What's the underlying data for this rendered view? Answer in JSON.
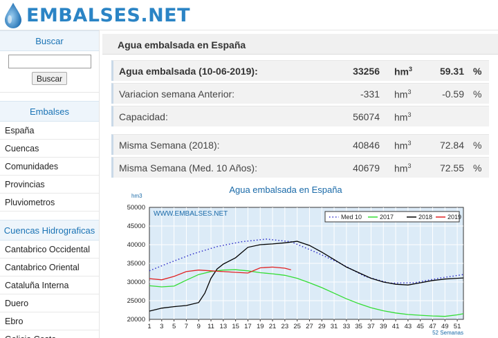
{
  "header": {
    "logo_text": "EMBALSES.NET",
    "logo_icon": "water-drop-icon"
  },
  "sidebar": {
    "search_heading": "Buscar",
    "search_value": "",
    "search_button": "Buscar",
    "embalses_heading": "Embalses",
    "embalses_items": [
      "España",
      "Cuencas",
      "Comunidades",
      "Provincias",
      "Pluviometros"
    ],
    "cuencas_heading": "Cuencas Hidrograficas",
    "cuencas_items": [
      "Cantabrico Occidental",
      "Cantabrico Oriental",
      "Cataluña Interna",
      "Duero",
      "Ebro",
      "Galicia Costa"
    ]
  },
  "main": {
    "title": "Agua embalsada en España",
    "stats": [
      {
        "label": "Agua embalsada (10-06-2019):",
        "value": "33256",
        "unit": "hm",
        "unit_sup": "3",
        "pct": "59.31",
        "pct_unit": "%"
      },
      {
        "label": "Variacion semana Anterior:",
        "value": "-331",
        "unit": "hm",
        "unit_sup": "3",
        "pct": "-0.59",
        "pct_unit": "%"
      },
      {
        "label": "Capacidad:",
        "value": "56074",
        "unit": "hm",
        "unit_sup": "3",
        "pct": "",
        "pct_unit": ""
      },
      {
        "label": "Misma Semana (2018):",
        "value": "40846",
        "unit": "hm",
        "unit_sup": "3",
        "pct": "72.84",
        "pct_unit": "%"
      },
      {
        "label": "Misma Semana (Med. 10 Años):",
        "value": "40679",
        "unit": "hm",
        "unit_sup": "3",
        "pct": "72.55",
        "pct_unit": "%"
      }
    ]
  },
  "chart_data": {
    "type": "line",
    "title": "Agua embalsada en España",
    "ylabel": "hm3",
    "xlabel": "52 Semanas",
    "watermark": "WWW.EMBALSES.NET",
    "ylim": [
      20000,
      50000
    ],
    "xlim": [
      1,
      52
    ],
    "x_ticks": [
      1,
      3,
      5,
      7,
      9,
      11,
      13,
      15,
      17,
      19,
      21,
      23,
      25,
      27,
      29,
      31,
      33,
      35,
      37,
      39,
      41,
      43,
      45,
      47,
      49,
      51
    ],
    "y_ticks": [
      "20000",
      "25000",
      "30000",
      "35000",
      "40000",
      "45000",
      "50000"
    ],
    "grid": true,
    "legend_position": "top-right",
    "series": [
      {
        "name": "Med 10",
        "color": "#2c2cc8",
        "dash": "dotted",
        "x": [
          1,
          4,
          8,
          12,
          16,
          20,
          24,
          28,
          32,
          36,
          40,
          44,
          48,
          52
        ],
        "values": [
          33000,
          35000,
          37500,
          39500,
          40800,
          41500,
          40800,
          38000,
          35000,
          31500,
          29700,
          29800,
          31000,
          32000
        ]
      },
      {
        "name": "2017",
        "color": "#33dd33",
        "dash": "solid",
        "x": [
          1,
          3,
          5,
          7,
          9,
          11,
          13,
          15,
          17,
          19,
          21,
          23,
          25,
          27,
          29,
          31,
          33,
          35,
          37,
          39,
          41,
          43,
          45,
          47,
          49,
          51,
          52
        ],
        "values": [
          29000,
          28700,
          28900,
          30500,
          32000,
          32800,
          33200,
          33300,
          33000,
          32500,
          32200,
          31800,
          31000,
          29800,
          28500,
          27000,
          25500,
          24200,
          23100,
          22300,
          21700,
          21300,
          21100,
          20900,
          20800,
          21200,
          21500
        ]
      },
      {
        "name": "2018",
        "color": "#000000",
        "dash": "solid",
        "x": [
          1,
          3,
          5,
          7,
          9,
          10,
          11,
          12,
          13,
          15,
          17,
          19,
          21,
          23,
          25,
          27,
          29,
          31,
          33,
          35,
          37,
          39,
          41,
          43,
          45,
          47,
          49,
          51,
          52
        ],
        "values": [
          22200,
          23000,
          23400,
          23700,
          24500,
          27000,
          31000,
          33500,
          34800,
          36500,
          39300,
          40000,
          40200,
          40500,
          40900,
          39800,
          38000,
          36000,
          34000,
          32500,
          31000,
          30000,
          29400,
          29200,
          29800,
          30400,
          30800,
          31000,
          31100
        ]
      },
      {
        "name": "2019",
        "color": "#e02020",
        "dash": "solid",
        "x": [
          1,
          3,
          5,
          7,
          9,
          11,
          13,
          15,
          17,
          19,
          21,
          23,
          24
        ],
        "values": [
          30900,
          30600,
          31500,
          32800,
          33200,
          33000,
          32800,
          32600,
          32400,
          33800,
          34000,
          33700,
          33256
        ]
      }
    ]
  }
}
